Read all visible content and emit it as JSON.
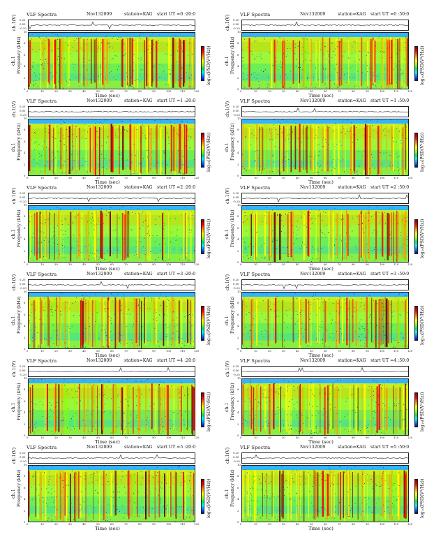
{
  "chart_data": [
    {
      "type": "heatmap",
      "title": "VLF Spectra",
      "date": "Nov132009",
      "station": "station=KAG",
      "start": "start  UT  =0 :20:0",
      "waveform_label": "ch.1(V)",
      "waveform_ticks": [
        "0.20",
        "0.00",
        "-0.20"
      ],
      "ylabel": "Frequency  (kHz)",
      "ylabel_prefix": "ch.1",
      "xlabel": "Time  (sec)",
      "colorbar_label": "log₁₀(PSD(V²/Hz))",
      "xlim": [
        0,
        120
      ],
      "ylim": [
        0,
        10
      ],
      "x_ticks": [
        "0",
        "10",
        "20",
        "30",
        "40",
        "50",
        "60",
        "70",
        "80",
        "90",
        "100",
        "110",
        "120"
      ],
      "y_ticks": [
        "0",
        "2",
        "4",
        "6",
        "8",
        "10"
      ],
      "cutoff_khz": 9.5
    },
    {
      "type": "heatmap",
      "title": "VLF Spectra",
      "date": "Nov132009",
      "station": "station=KAG",
      "start": "start  UT  =0 :50:0",
      "waveform_label": "ch.1(V)",
      "waveform_ticks": [
        "0.20",
        "0.00",
        "-0.20"
      ],
      "ylabel": "Frequency  (kHz)",
      "ylabel_prefix": "ch.1",
      "xlabel": "Time  (sec)",
      "colorbar_label": "log₁₀(PSD(V²/Hz))",
      "xlim": [
        0,
        120
      ],
      "ylim": [
        0,
        10
      ],
      "x_ticks": [
        "0",
        "10",
        "20",
        "30",
        "40",
        "50",
        "60",
        "70",
        "80",
        "90",
        "100",
        "110",
        "120"
      ],
      "y_ticks": [
        "0",
        "2",
        "4",
        "6",
        "8",
        "10"
      ],
      "cutoff_khz": 9.5
    },
    {
      "type": "heatmap",
      "title": "VLF Spectra",
      "date": "Nov132009",
      "station": "station=KAG",
      "start": "start  UT  =1 :20:0",
      "waveform_label": "ch.1(V)",
      "waveform_ticks": [
        "0.20",
        "0.00",
        "-0.20"
      ],
      "ylabel": "Frequency  (kHz)",
      "ylabel_prefix": "ch.1",
      "xlabel": "Time  (sec)",
      "colorbar_label": "log₁₀(PSD(V²/Hz))",
      "xlim": [
        0,
        120
      ],
      "ylim": [
        0,
        10
      ],
      "x_ticks": [
        "0",
        "10",
        "20",
        "30",
        "40",
        "50",
        "60",
        "70",
        "80",
        "90",
        "100",
        "110",
        "120"
      ],
      "y_ticks": [
        "0",
        "2",
        "4",
        "6",
        "8",
        "10"
      ],
      "cutoff_khz": 9.5
    },
    {
      "type": "heatmap",
      "title": "VLF Spectra",
      "date": "Nov132009",
      "station": "station=KAG",
      "start": "start  UT  =1 :50:0",
      "waveform_label": "ch.1(V)",
      "waveform_ticks": [
        "0.20",
        "0.00",
        "-0.20"
      ],
      "ylabel": "Frequency  (kHz)",
      "ylabel_prefix": "ch.1",
      "xlabel": "Time  (sec)",
      "colorbar_label": "log₁₀(PSD(V²/Hz))",
      "xlim": [
        0,
        120
      ],
      "ylim": [
        0,
        10
      ],
      "x_ticks": [
        "0",
        "10",
        "20",
        "30",
        "40",
        "50",
        "60",
        "70",
        "80",
        "90",
        "100",
        "110",
        "120"
      ],
      "y_ticks": [
        "0",
        "2",
        "4",
        "6",
        "8",
        "10"
      ],
      "cutoff_khz": 9.5
    },
    {
      "type": "heatmap",
      "title": "VLF Spectra",
      "date": "Nov132009",
      "station": "station=KAG",
      "start": "start  UT  =2 :20:0",
      "waveform_label": "ch.1(V)",
      "waveform_ticks": [
        "0.20",
        "0.00",
        "-0.20"
      ],
      "ylabel": "Frequency  (kHz)",
      "ylabel_prefix": "ch.1",
      "xlabel": "Time  (sec)",
      "colorbar_label": "log₁₀(PSD(V²/Hz))",
      "xlim": [
        0,
        120
      ],
      "ylim": [
        0,
        10
      ],
      "x_ticks": [
        "0",
        "10",
        "20",
        "30",
        "40",
        "50",
        "60",
        "70",
        "80",
        "90",
        "100",
        "110",
        "120"
      ],
      "y_ticks": [
        "0",
        "2",
        "4",
        "6",
        "8",
        "10"
      ],
      "cutoff_khz": 9.5
    },
    {
      "type": "heatmap",
      "title": "VLF Spectra",
      "date": "Nov132009",
      "station": "station=KAG",
      "start": "start  UT  =2 :50:0",
      "waveform_label": "ch.1(V)",
      "waveform_ticks": [
        "0.20",
        "0.00",
        "-0.20"
      ],
      "ylabel": "Frequency  (kHz)",
      "ylabel_prefix": "ch.1",
      "xlabel": "Time  (sec)",
      "colorbar_label": "log₁₀(PSD(V²/Hz))",
      "xlim": [
        0,
        120
      ],
      "ylim": [
        0,
        10
      ],
      "x_ticks": [
        "0",
        "10",
        "20",
        "30",
        "40",
        "50",
        "60",
        "70",
        "80",
        "90",
        "100",
        "110",
        "120"
      ],
      "y_ticks": [
        "0",
        "2",
        "4",
        "6",
        "8",
        "10"
      ],
      "cutoff_khz": 9.5
    },
    {
      "type": "heatmap",
      "title": "VLF Spectra",
      "date": "Nov132009",
      "station": "station=KAG",
      "start": "start  UT  =3 :20:0",
      "waveform_label": "ch.1(V)",
      "waveform_ticks": [
        "0.20",
        "0.00",
        "-0.20"
      ],
      "ylabel": "Frequency  (kHz)",
      "ylabel_prefix": "ch.1",
      "xlabel": "Time  (sec)",
      "colorbar_label": "log₁₀(PSD(V²/Hz))",
      "xlim": [
        0,
        120
      ],
      "ylim": [
        0,
        10
      ],
      "x_ticks": [
        "0",
        "10",
        "20",
        "30",
        "40",
        "50",
        "60",
        "70",
        "80",
        "90",
        "100",
        "110",
        "120"
      ],
      "y_ticks": [
        "0",
        "2",
        "4",
        "6",
        "8",
        "10"
      ],
      "cutoff_khz": 9.5
    },
    {
      "type": "heatmap",
      "title": "VLF Spectra",
      "date": "Nov132009",
      "station": "station=KAG",
      "start": "start  UT  =3 :50:0",
      "waveform_label": "ch.1(V)",
      "waveform_ticks": [
        "0.20",
        "0.00",
        "-0.20"
      ],
      "ylabel": "Frequency  (kHz)",
      "ylabel_prefix": "ch.1",
      "xlabel": "Time  (sec)",
      "colorbar_label": "log₁₀(PSD(V²/Hz))",
      "xlim": [
        0,
        120
      ],
      "ylim": [
        0,
        10
      ],
      "x_ticks": [
        "0",
        "10",
        "20",
        "30",
        "40",
        "50",
        "60",
        "70",
        "80",
        "90",
        "100",
        "110",
        "120"
      ],
      "y_ticks": [
        "0",
        "2",
        "4",
        "6",
        "8",
        "10"
      ],
      "cutoff_khz": 9.5
    },
    {
      "type": "heatmap",
      "title": "VLF Spectra",
      "date": "Nov132009",
      "station": "station=KAG",
      "start": "start  UT  =4 :20:0",
      "waveform_label": "ch.1(V)",
      "waveform_ticks": [
        "0.20",
        "0.00",
        "-0.20"
      ],
      "ylabel": "Frequency  (kHz)",
      "ylabel_prefix": "ch.1",
      "xlabel": "Time  (sec)",
      "colorbar_label": "log₁₀(PSD(V²/Hz))",
      "xlim": [
        0,
        120
      ],
      "ylim": [
        0,
        10
      ],
      "x_ticks": [
        "0",
        "10",
        "20",
        "30",
        "40",
        "50",
        "60",
        "70",
        "80",
        "90",
        "100",
        "110",
        "120"
      ],
      "y_ticks": [
        "0",
        "2",
        "4",
        "6",
        "8",
        "10"
      ],
      "cutoff_khz": 9.5
    },
    {
      "type": "heatmap",
      "title": "VLF Spectra",
      "date": "Nov132009",
      "station": "station=KAG",
      "start": "start  UT  =4 :50:0",
      "waveform_label": "ch.1(V)",
      "waveform_ticks": [
        "0.20",
        "0.00",
        "-0.20"
      ],
      "ylabel": "Frequency  (kHz)",
      "ylabel_prefix": "ch.1",
      "xlabel": "Time  (sec)",
      "colorbar_label": "log₁₀(PSD(V²/Hz))",
      "xlim": [
        0,
        120
      ],
      "ylim": [
        0,
        10
      ],
      "x_ticks": [
        "0",
        "10",
        "20",
        "30",
        "40",
        "50",
        "60",
        "70",
        "80",
        "90",
        "100",
        "110",
        "120"
      ],
      "y_ticks": [
        "0",
        "2",
        "4",
        "6",
        "8",
        "10"
      ],
      "cutoff_khz": 9.5
    },
    {
      "type": "heatmap",
      "title": "VLF Spectra",
      "date": "Nov132009",
      "station": "station=KAG",
      "start": "start  UT  =5 :20:0",
      "waveform_label": "ch.1(V)",
      "waveform_ticks": [
        "0.20",
        "0.00",
        "-0.20"
      ],
      "ylabel": "Frequency  (kHz)",
      "ylabel_prefix": "ch.1",
      "xlabel": "Time  (sec)",
      "colorbar_label": "log₁₀(PSD(V²/Hz))",
      "xlim": [
        0,
        120
      ],
      "ylim": [
        0,
        10
      ],
      "x_ticks": [
        "0",
        "10",
        "20",
        "30",
        "40",
        "50",
        "60",
        "70",
        "80",
        "90",
        "100",
        "110",
        "120"
      ],
      "y_ticks": [
        "0",
        "2",
        "4",
        "6",
        "8",
        "10"
      ],
      "cutoff_khz": 9.5
    },
    {
      "type": "heatmap",
      "title": "VLF Spectra",
      "date": "Nov132009",
      "station": "station=KAG",
      "start": "start  UT  =5 :50:0",
      "waveform_label": "ch.1(V)",
      "waveform_ticks": [
        "0.20",
        "0.00",
        "-0.20"
      ],
      "ylabel": "Frequency  (kHz)",
      "ylabel_prefix": "ch.1",
      "xlabel": "Time  (sec)",
      "colorbar_label": "log₁₀(PSD(V²/Hz))",
      "xlim": [
        0,
        120
      ],
      "ylim": [
        0,
        10
      ],
      "x_ticks": [
        "0",
        "10",
        "20",
        "30",
        "40",
        "50",
        "60",
        "70",
        "80",
        "90",
        "100",
        "110",
        "120"
      ],
      "y_ticks": [
        "0",
        "2",
        "4",
        "6",
        "8",
        "10"
      ],
      "cutoff_khz": 9.5
    }
  ],
  "colors": {
    "dark_red": "#7a0000",
    "red": "#ff0000",
    "orange": "#ff8c00",
    "yellow": "#ffff00",
    "green": "#7fff00",
    "cyan": "#00ffff",
    "blue": "#0000aa",
    "frame": "#222222"
  }
}
